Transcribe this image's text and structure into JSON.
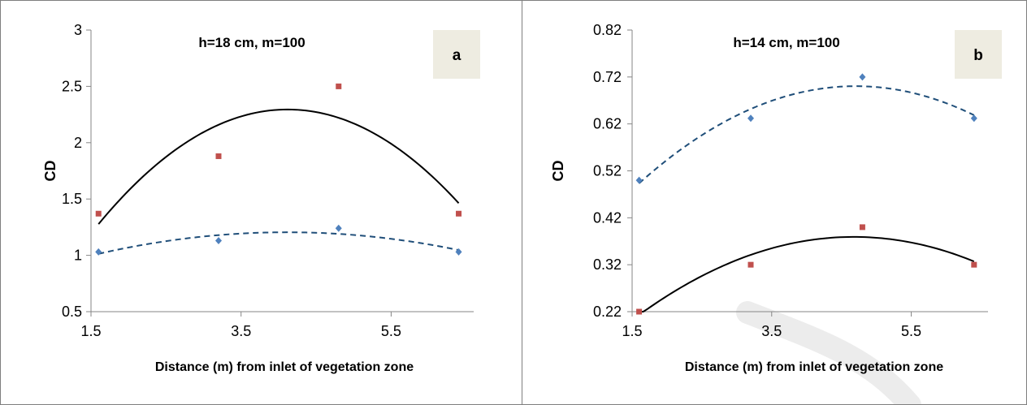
{
  "colors": {
    "series_square": "#c0504d",
    "series_diamond": "#4f81bd",
    "trend_solid": "#000000",
    "trend_dashed": "#1f4e79",
    "label_box": "#eeece1",
    "frame": "#7f7f7f",
    "watermark": "#ececec"
  },
  "chart_data": [
    {
      "type": "scatter",
      "panel_label": "a",
      "title": "h=18 cm, m=100",
      "xlabel": "Distance (m) from inlet of vegetation zone",
      "ylabel": "CD",
      "xlim": [
        1.5,
        6.6
      ],
      "ylim": [
        0.5,
        3
      ],
      "xticks": [
        1.5,
        3.5,
        5.5
      ],
      "xtick_labels": [
        "1.5",
        "3.5",
        "5.5"
      ],
      "yticks": [
        0.5,
        1,
        1.5,
        2,
        2.5,
        3
      ],
      "ytick_labels": [
        "0.5",
        "1",
        "1.5",
        "2",
        "2.5",
        "3"
      ],
      "grid": false,
      "series": [
        {
          "marker": "square",
          "x": [
            1.6,
            3.2,
            4.8,
            6.4
          ],
          "y": [
            1.37,
            1.88,
            2.5,
            1.37
          ],
          "trendline": {
            "type": "polynomial",
            "style": "solid"
          }
        },
        {
          "marker": "diamond",
          "x": [
            1.6,
            3.2,
            4.8,
            6.4
          ],
          "y": [
            1.03,
            1.13,
            1.24,
            1.03
          ],
          "trendline": {
            "type": "polynomial",
            "style": "dashed"
          }
        }
      ]
    },
    {
      "type": "scatter",
      "panel_label": "b",
      "title": "h=14 cm, m=100",
      "xlabel": "Distance (m) from inlet of vegetation zone",
      "ylabel": "CD",
      "xlim": [
        1.5,
        6.6
      ],
      "ylim": [
        0.22,
        0.82
      ],
      "xticks": [
        1.5,
        3.5,
        5.5
      ],
      "xtick_labels": [
        "1.5",
        "3.5",
        "5.5"
      ],
      "yticks": [
        0.22,
        0.32,
        0.42,
        0.52,
        0.62,
        0.72,
        0.82
      ],
      "ytick_labels": [
        "0.22",
        "0.32",
        "0.42",
        "0.52",
        "0.62",
        "0.72",
        "0.82"
      ],
      "grid": false,
      "series": [
        {
          "marker": "diamond",
          "x": [
            1.6,
            3.2,
            4.8,
            6.4
          ],
          "y": [
            0.5,
            0.632,
            0.72,
            0.632
          ],
          "trendline": {
            "type": "polynomial",
            "style": "dashed"
          }
        },
        {
          "marker": "square",
          "x": [
            1.6,
            3.2,
            4.8,
            6.4
          ],
          "y": [
            0.22,
            0.32,
            0.4,
            0.32
          ],
          "trendline": {
            "type": "polynomial",
            "style": "solid"
          }
        }
      ]
    }
  ]
}
